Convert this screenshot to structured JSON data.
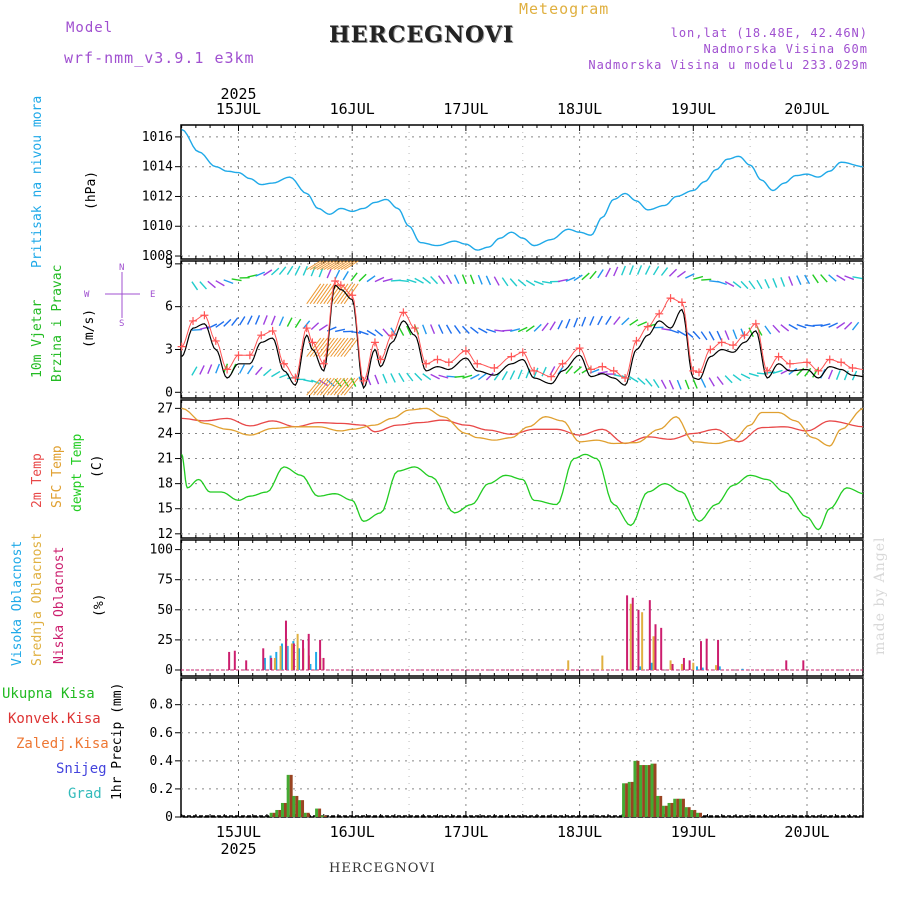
{
  "header": {
    "meteogram": "Meteogram",
    "model_label": "Model",
    "model_name": "wrf-nmm_v3.9.1  e3km",
    "title": "HERCEGNOVI",
    "lonlat": "lon,lat (18.48E, 42.46N)",
    "height": "Nadmorska Visina 60m",
    "model_height": "Nadmorska Visina u modelu 233.029m",
    "footer_title": "HERCEGNOVI",
    "watermark": "made by Angel"
  },
  "colors": {
    "pressure": "#1fa9e8",
    "wind_green": "#22bb22",
    "purple": "#a050d0",
    "temp2m": "#e84848",
    "sfc": "#e0a030",
    "dew": "#22cc22",
    "high_cloud": "#1fa9e8",
    "mid_cloud": "#e0b040",
    "low_cloud": "#cc1e6e",
    "precip_total": "#44aa33",
    "precip_conv": "#dd3333",
    "precip_frozen": "#ee7733",
    "snow": "#4444dd",
    "graupel": "#33bbbb",
    "wind_speed": "#000000",
    "gust": "#ff5555"
  },
  "axis": {
    "year": "2025",
    "days": [
      "15JUL",
      "16JUL",
      "17JUL",
      "18JUL",
      "19JUL",
      "20JUL"
    ]
  },
  "panel_labels": {
    "pressure": [
      "Pritisak na nivou mora",
      "(hPa)"
    ],
    "wind": [
      "10m Vjetar",
      "Brzina i Pravac",
      "(m/s)"
    ],
    "compass": [
      "N",
      "W",
      "E",
      "S"
    ],
    "temp": [
      "2m Temp",
      "SFC Temp",
      "dewpt Temp",
      "(C)"
    ],
    "cloud": [
      "Visoka Oblacnost",
      "Srednja Oblacnost",
      "Niska Oblacnost",
      "(%)"
    ],
    "precip": [
      "Ukupna Kisa",
      "Konvek.Kisa",
      "Zaledj.Kisa",
      "Snijeg",
      "Grad",
      "1hr Precip (mm)"
    ]
  },
  "chart_data": [
    {
      "type": "line",
      "title": "Pritisak na nivou mora",
      "ylabel": "(hPa)",
      "x_unit": "days since 15JUL 00UTC",
      "ylim": [
        1007.8,
        1016.8
      ],
      "yticks": [
        1008,
        1010,
        1012,
        1014,
        1016
      ],
      "series": [
        {
          "name": "pressure",
          "x": [
            -0.5,
            -0.35,
            -0.2,
            -0.1,
            0.0,
            0.1,
            0.2,
            0.3,
            0.45,
            0.6,
            0.7,
            0.8,
            0.9,
            1.0,
            1.1,
            1.2,
            1.3,
            1.4,
            1.5,
            1.6,
            1.75,
            1.9,
            2.0,
            2.1,
            2.2,
            2.3,
            2.4,
            2.5,
            2.6,
            2.75,
            2.9,
            3.0,
            3.1,
            3.2,
            3.3,
            3.4,
            3.5,
            3.6,
            3.75,
            3.85,
            4.0,
            4.1,
            4.2,
            4.3,
            4.4,
            4.5,
            4.6,
            4.7,
            4.8,
            4.9,
            5.0,
            5.1,
            5.2,
            5.3,
            5.5
          ],
          "values": [
            1016.5,
            1015.0,
            1014.0,
            1013.7,
            1013.6,
            1013.2,
            1012.8,
            1012.9,
            1013.3,
            1012.2,
            1011.2,
            1010.8,
            1011.2,
            1011.0,
            1011.2,
            1011.6,
            1011.8,
            1011.2,
            1010.0,
            1008.9,
            1008.7,
            1009.0,
            1008.8,
            1008.4,
            1008.6,
            1009.2,
            1009.6,
            1009.2,
            1008.7,
            1009.1,
            1009.8,
            1009.6,
            1009.4,
            1010.6,
            1011.8,
            1012.2,
            1011.7,
            1011.1,
            1011.4,
            1012.0,
            1012.4,
            1013.0,
            1013.8,
            1014.5,
            1014.7,
            1014.1,
            1013.1,
            1012.4,
            1012.9,
            1013.4,
            1013.5,
            1013.3,
            1013.7,
            1014.3,
            1014.0
          ]
        }
      ]
    },
    {
      "type": "line",
      "title": "10m Vjetar Brzina i Pravac",
      "ylabel": "(m/s)",
      "ylim": [
        -0.4,
        9.2
      ],
      "yticks": [
        0,
        3,
        6,
        9
      ],
      "series": [
        {
          "name": "wind speed",
          "x": [
            -0.5,
            -0.4,
            -0.3,
            -0.2,
            -0.1,
            0.0,
            0.1,
            0.2,
            0.3,
            0.4,
            0.5,
            0.6,
            0.65,
            0.75,
            0.85,
            0.9,
            1.0,
            1.1,
            1.2,
            1.25,
            1.35,
            1.45,
            1.55,
            1.65,
            1.75,
            1.85,
            2.0,
            2.1,
            2.25,
            2.4,
            2.5,
            2.6,
            2.75,
            2.85,
            3.0,
            3.1,
            3.2,
            3.3,
            3.4,
            3.5,
            3.6,
            3.7,
            3.8,
            3.9,
            4.0,
            4.05,
            4.15,
            4.25,
            4.35,
            4.45,
            4.55,
            4.65,
            4.75,
            4.85,
            5.0,
            5.1,
            5.2,
            5.3,
            5.4,
            5.5
          ],
          "values": [
            2.5,
            4.5,
            4.8,
            3.0,
            1.0,
            2.0,
            2.0,
            3.5,
            3.8,
            1.5,
            0.5,
            4.0,
            3.0,
            1.5,
            7.5,
            7.2,
            6.5,
            0.3,
            3.0,
            1.8,
            3.5,
            5.0,
            4.0,
            1.5,
            1.8,
            1.6,
            2.4,
            1.5,
            1.2,
            2.0,
            2.3,
            1.0,
            0.6,
            1.5,
            2.6,
            1.1,
            1.3,
            1.0,
            0.5,
            3.0,
            4.0,
            5.0,
            4.5,
            5.8,
            1.0,
            0.9,
            2.5,
            3.0,
            2.8,
            3.5,
            4.3,
            1.0,
            2.0,
            1.5,
            1.6,
            1.0,
            1.8,
            1.6,
            1.2,
            1.1
          ]
        },
        {
          "name": "wind gust",
          "x": [
            -0.5,
            -0.4,
            -0.3,
            -0.2,
            -0.1,
            0.0,
            0.1,
            0.2,
            0.3,
            0.4,
            0.5,
            0.6,
            0.65,
            0.75,
            0.85,
            0.9,
            1.0,
            1.1,
            1.2,
            1.25,
            1.35,
            1.45,
            1.55,
            1.65,
            1.75,
            1.85,
            2.0,
            2.1,
            2.25,
            2.4,
            2.5,
            2.6,
            2.75,
            2.85,
            3.0,
            3.1,
            3.2,
            3.3,
            3.4,
            3.5,
            3.6,
            3.7,
            3.8,
            3.9,
            4.0,
            4.05,
            4.15,
            4.25,
            4.35,
            4.45,
            4.55,
            4.65,
            4.75,
            4.85,
            5.0,
            5.1,
            5.2,
            5.3,
            5.4,
            5.5
          ],
          "values": [
            3.2,
            5.0,
            5.4,
            3.6,
            1.6,
            2.6,
            2.6,
            4.0,
            4.3,
            2.0,
            1.0,
            4.5,
            3.5,
            2.0,
            7.8,
            7.5,
            6.8,
            0.8,
            3.5,
            2.3,
            4.0,
            5.6,
            4.5,
            2.0,
            2.3,
            2.1,
            2.9,
            2.0,
            1.7,
            2.5,
            2.8,
            1.5,
            1.1,
            2.0,
            3.1,
            1.6,
            1.8,
            1.5,
            1.0,
            3.6,
            4.6,
            5.5,
            6.6,
            6.3,
            1.5,
            1.4,
            3.0,
            3.5,
            3.3,
            4.0,
            4.8,
            1.5,
            2.5,
            2.0,
            2.1,
            1.5,
            2.3,
            2.1,
            1.7,
            1.6
          ]
        }
      ]
    },
    {
      "type": "line",
      "title": "2m / SFC / dewpt Temp",
      "ylabel": "(C)",
      "ylim": [
        11.5,
        28.0
      ],
      "yticks": [
        12,
        15,
        18,
        21,
        24,
        27
      ],
      "series": [
        {
          "name": "2m Temp",
          "x": [
            -0.5,
            -0.3,
            -0.1,
            0.1,
            0.3,
            0.5,
            0.7,
            0.9,
            1.1,
            1.2,
            1.4,
            1.6,
            1.8,
            2.0,
            2.2,
            2.4,
            2.6,
            2.8,
            3.0,
            3.2,
            3.4,
            3.6,
            3.8,
            4.0,
            4.2,
            4.4,
            4.6,
            4.8,
            5.0,
            5.2,
            5.5
          ],
          "values": [
            25.8,
            25.5,
            25.8,
            24.9,
            25.5,
            24.8,
            25.3,
            25.2,
            25.0,
            24.2,
            25.0,
            25.3,
            25.6,
            25.0,
            24.4,
            23.9,
            24.5,
            24.5,
            23.8,
            24.5,
            22.8,
            23.6,
            23.3,
            24.0,
            24.5,
            23.0,
            24.7,
            24.8,
            24.3,
            25.5,
            24.8
          ]
        },
        {
          "name": "SFC Temp",
          "x": [
            -0.5,
            -0.3,
            -0.1,
            0.1,
            0.3,
            0.5,
            0.7,
            0.9,
            1.0,
            1.2,
            1.35,
            1.5,
            1.65,
            1.8,
            2.0,
            2.1,
            2.25,
            2.4,
            2.55,
            2.7,
            2.85,
            3.0,
            3.15,
            3.3,
            3.5,
            3.7,
            3.85,
            4.0,
            4.2,
            4.35,
            4.5,
            4.6,
            4.75,
            4.9,
            5.05,
            5.2,
            5.3,
            5.5
          ],
          "values": [
            27.0,
            25.2,
            24.5,
            23.8,
            24.6,
            24.8,
            24.8,
            24.3,
            24.5,
            25.0,
            25.8,
            26.8,
            27.0,
            26.0,
            24.0,
            23.5,
            23.2,
            23.5,
            24.8,
            26.0,
            25.5,
            23.0,
            23.2,
            22.8,
            22.9,
            24.5,
            26.0,
            23.0,
            22.8,
            23.2,
            25.0,
            26.5,
            26.5,
            25.5,
            23.5,
            22.5,
            24.5,
            27.0
          ]
        },
        {
          "name": "dewpt Temp",
          "x": [
            -0.5,
            -0.45,
            -0.35,
            -0.25,
            -0.15,
            0.0,
            0.1,
            0.25,
            0.4,
            0.55,
            0.7,
            0.85,
            1.0,
            1.1,
            1.25,
            1.4,
            1.55,
            1.7,
            1.9,
            2.05,
            2.2,
            2.35,
            2.5,
            2.6,
            2.8,
            2.95,
            3.05,
            3.15,
            3.3,
            3.45,
            3.6,
            3.75,
            3.9,
            4.05,
            4.2,
            4.35,
            4.5,
            4.65,
            4.8,
            5.0,
            5.1,
            5.2,
            5.35,
            5.5
          ],
          "values": [
            21.5,
            17.5,
            18.5,
            17.0,
            17.0,
            16.0,
            16.5,
            17.0,
            20.0,
            19.0,
            16.5,
            16.8,
            16.0,
            13.5,
            14.5,
            19.5,
            20.0,
            18.8,
            14.5,
            15.5,
            18.0,
            19.0,
            18.5,
            16.0,
            15.5,
            21.0,
            21.5,
            21.0,
            15.5,
            13.0,
            17.0,
            18.0,
            17.0,
            13.5,
            15.5,
            17.8,
            19.0,
            18.5,
            17.0,
            14.0,
            12.5,
            15.0,
            17.5,
            16.8
          ]
        }
      ]
    },
    {
      "type": "bar",
      "title": "Oblacnost",
      "ylabel": "(%)",
      "ylim": [
        -5,
        108
      ],
      "yticks": [
        0,
        25,
        50,
        75,
        100
      ],
      "series": [
        {
          "name": "Visoka Oblacnost",
          "x": [
            0.25,
            0.3,
            0.35,
            0.4,
            0.45,
            0.5,
            0.55,
            0.65,
            0.7,
            3.55,
            3.65,
            4.05,
            4.1,
            4.25,
            4.45
          ],
          "values": [
            10,
            12,
            15,
            22,
            20,
            24,
            18,
            5,
            15,
            3,
            6,
            3,
            2,
            3,
            1
          ]
        },
        {
          "name": "Srednja Oblacnost",
          "x": [
            0.22,
            0.32,
            0.37,
            0.42,
            0.47,
            0.52,
            0.57,
            0.62,
            0.72,
            2.9,
            3.2,
            3.45,
            3.55,
            3.65,
            3.8,
            3.9,
            4.0,
            4.2
          ],
          "values": [
            5,
            10,
            20,
            26,
            22,
            30,
            18,
            12,
            10,
            8,
            12,
            55,
            48,
            28,
            8,
            5,
            6,
            4
          ]
        },
        {
          "name": "Niska Oblacnost",
          "x": [
            -0.1,
            -0.05,
            0.05,
            0.2,
            0.27,
            0.4,
            0.47,
            0.55,
            0.6,
            0.7,
            0.73,
            3.4,
            3.45,
            3.5,
            3.6,
            3.65,
            3.7,
            3.8,
            3.9,
            3.95,
            4.05,
            4.1,
            4.2,
            4.8,
            4.95
          ],
          "values": [
            15,
            16,
            8,
            18,
            10,
            41,
            22,
            25,
            30,
            25,
            10,
            62,
            60,
            50,
            58,
            38,
            35,
            5,
            10,
            8,
            24,
            26,
            25,
            8,
            8
          ]
        }
      ]
    },
    {
      "type": "bar",
      "title": "1hr Precip",
      "ylabel": "1hr Precip (mm)",
      "ylim": [
        0,
        0.99
      ],
      "yticks": [
        0,
        0.2,
        0.4,
        0.6,
        0.8
      ],
      "series": [
        {
          "name": "Ukupna Kisa",
          "x": [
            0.3,
            0.35,
            0.4,
            0.45,
            0.5,
            0.55,
            0.6,
            0.7,
            0.75,
            3.4,
            3.45,
            3.5,
            3.55,
            3.6,
            3.65,
            3.7,
            3.75,
            3.8,
            3.85,
            3.9,
            3.95,
            4.0,
            4.05
          ],
          "values": [
            0.03,
            0.05,
            0.1,
            0.3,
            0.15,
            0.12,
            0.03,
            0.06,
            0.01,
            0.24,
            0.25,
            0.4,
            0.37,
            0.37,
            0.38,
            0.15,
            0.08,
            0.1,
            0.13,
            0.13,
            0.07,
            0.05,
            0.03
          ]
        },
        {
          "name": "Konvek.Kisa",
          "x": [
            0.3,
            0.35,
            0.4,
            0.45,
            0.5,
            0.55,
            0.6,
            0.7,
            0.75,
            3.4,
            3.45,
            3.5,
            3.55,
            3.6,
            3.65,
            3.7,
            3.75,
            3.8,
            3.85,
            3.9,
            3.95,
            4.0,
            4.05
          ],
          "values": [
            0.03,
            0.05,
            0.1,
            0.3,
            0.15,
            0.12,
            0.03,
            0.06,
            0.01,
            0.24,
            0.25,
            0.4,
            0.37,
            0.37,
            0.38,
            0.15,
            0.08,
            0.1,
            0.13,
            0.13,
            0.07,
            0.05,
            0.03
          ]
        }
      ]
    }
  ]
}
